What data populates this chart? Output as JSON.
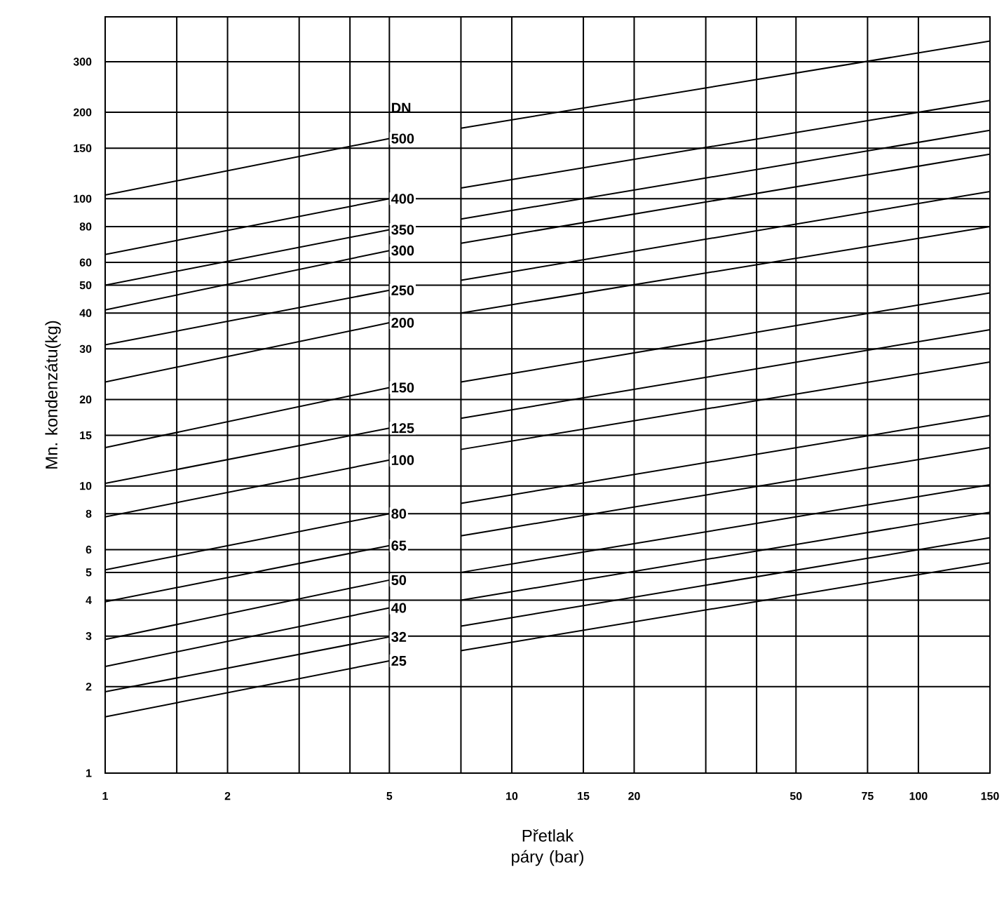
{
  "chart_data": {
    "type": "line",
    "xlabel": "Přetlak páry (bar)",
    "ylabel": "Mn. kondenzátu(kg)",
    "legend_title": "DN",
    "log": "xy",
    "grid": true,
    "marker": "none",
    "line_style": "solid",
    "xlim": [
      1,
      150
    ],
    "ylim": [
      1,
      430
    ],
    "xticks": [
      1,
      {
        "value": 1.5,
        "label": null
      },
      2,
      {
        "value": 3,
        "label": null
      },
      {
        "value": 4,
        "label": null
      },
      5,
      {
        "value": 7.5,
        "label": null
      },
      10,
      15,
      20,
      {
        "value": 30,
        "label": null
      },
      {
        "value": 40,
        "label": null
      },
      50,
      75,
      100,
      150
    ],
    "yticks": [
      1,
      2,
      3,
      4,
      5,
      6,
      8,
      10,
      15,
      20,
      30,
      40,
      50,
      60,
      80,
      100,
      150,
      200,
      300
    ],
    "x": [
      1,
      5,
      6,
      7.5,
      150
    ],
    "series": [
      {
        "name": "500",
        "color": "#000000",
        "values": [
          103,
          162,
          null,
          176,
          354
        ]
      },
      {
        "name": "400",
        "color": "#000000",
        "values": [
          64,
          100,
          null,
          109,
          220
        ]
      },
      {
        "name": "350",
        "color": "#000000",
        "values": [
          50,
          78,
          null,
          85,
          173
        ]
      },
      {
        "name": "300",
        "color": "#000000",
        "values": [
          41,
          66,
          null,
          70,
          143
        ]
      },
      {
        "name": "250",
        "color": "#000000",
        "values": [
          31,
          48,
          null,
          52,
          106
        ]
      },
      {
        "name": "200",
        "color": "#000000",
        "values": [
          23,
          37,
          null,
          40,
          80
        ]
      },
      {
        "name": "150",
        "color": "#000000",
        "values": [
          13.6,
          22,
          null,
          23,
          47
        ]
      },
      {
        "name": "125",
        "color": "#000000",
        "values": [
          10.2,
          15.9,
          null,
          17.2,
          35
        ]
      },
      {
        "name": "100",
        "color": "#000000",
        "values": [
          7.8,
          12.3,
          null,
          13.4,
          27
        ]
      },
      {
        "name": "80",
        "color": "#000000",
        "values": [
          5.1,
          8.0,
          null,
          8.7,
          17.6
        ]
      },
      {
        "name": "65",
        "color": "#000000",
        "values": [
          3.95,
          6.2,
          null,
          6.7,
          13.6
        ]
      },
      {
        "name": "50",
        "color": "#000000",
        "values": [
          2.92,
          4.7,
          null,
          5.0,
          10.1
        ]
      },
      {
        "name": "40",
        "color": "#000000",
        "values": [
          2.35,
          3.76,
          null,
          4.0,
          8.1
        ]
      },
      {
        "name": "32",
        "color": "#000000",
        "values": [
          1.92,
          2.98,
          null,
          3.25,
          6.6
        ]
      },
      {
        "name": "25",
        "color": "#000000",
        "values": [
          1.57,
          2.46,
          null,
          2.67,
          5.4
        ]
      }
    ]
  }
}
